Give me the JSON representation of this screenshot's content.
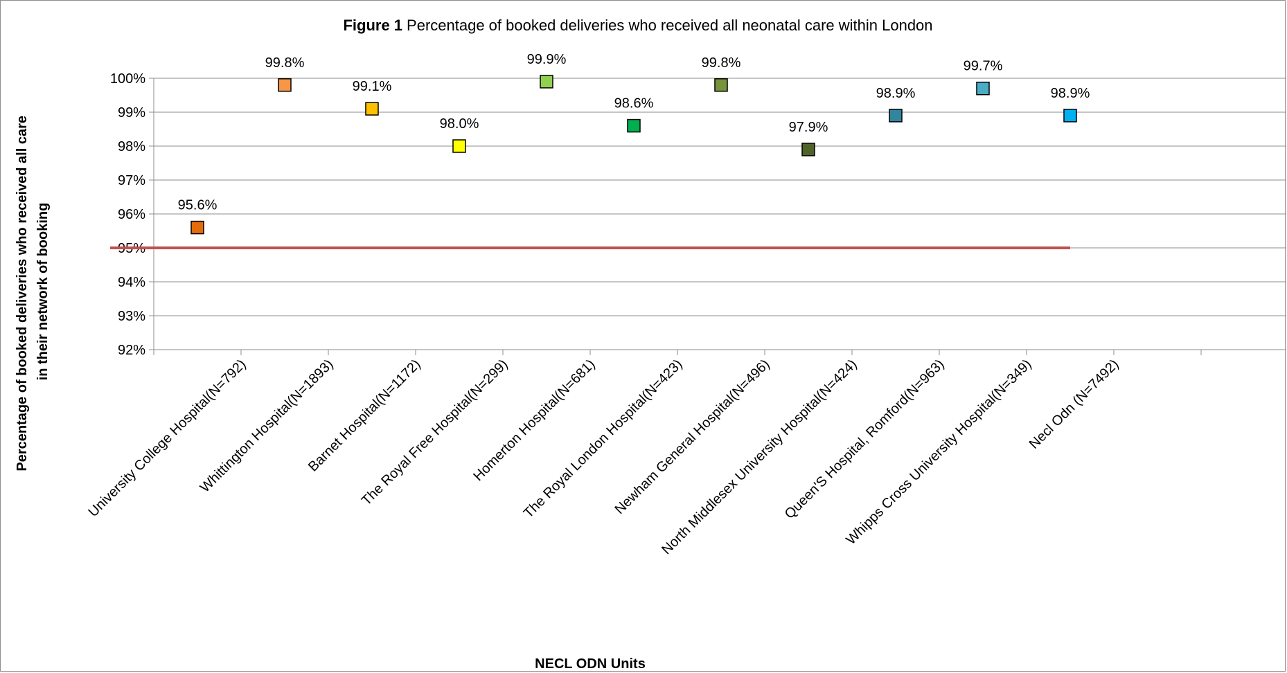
{
  "chart_data": {
    "type": "scatter",
    "title_prefix": "Figure 1",
    "title": "Percentage of booked deliveries who received all neonatal care within London",
    "xlabel": "NECL ODN Units",
    "ylabel_lines": [
      "Percentage of booked deliveries who received all care",
      "in their network of booking"
    ],
    "ylim": [
      92,
      100
    ],
    "yticks": [
      "92%",
      "93%",
      "94%",
      "95%",
      "96%",
      "97%",
      "98%",
      "99%",
      "100%"
    ],
    "grid": true,
    "categories": [
      "University College Hospital(N=792)",
      "Whittington Hospital(N=1893)",
      "Barnet Hospital(N=1172)",
      "The Royal Free Hospital(N=299)",
      "Homerton Hospital(N=681)",
      "The Royal London Hospital(N=423)",
      "Newham General Hospital(N=496)",
      "North Middlesex University Hospital(N=424)",
      "Queen'S Hospital, Romford(N=963)",
      "Whipps Cross University Hospital(N=349)",
      "Necl Odn (N=7492)"
    ],
    "values": [
      95.6,
      99.8,
      99.1,
      98.0,
      99.9,
      98.6,
      99.8,
      97.9,
      98.9,
      99.7,
      98.9
    ],
    "data_labels": [
      "95.6%",
      "99.8%",
      "99.1%",
      "98.0%",
      "99.9%",
      "98.6%",
      "99.8%",
      "97.9%",
      "98.9%",
      "99.7%",
      "98.9%"
    ],
    "marker_colors": [
      "#e46c0a",
      "#f79646",
      "#ffc000",
      "#ffff00",
      "#92d050",
      "#00b050",
      "#77933c",
      "#4f6228",
      "#31859c",
      "#4bacc6",
      "#00b0f0"
    ],
    "threshold": {
      "value": 95,
      "color": "#c0504d"
    }
  }
}
